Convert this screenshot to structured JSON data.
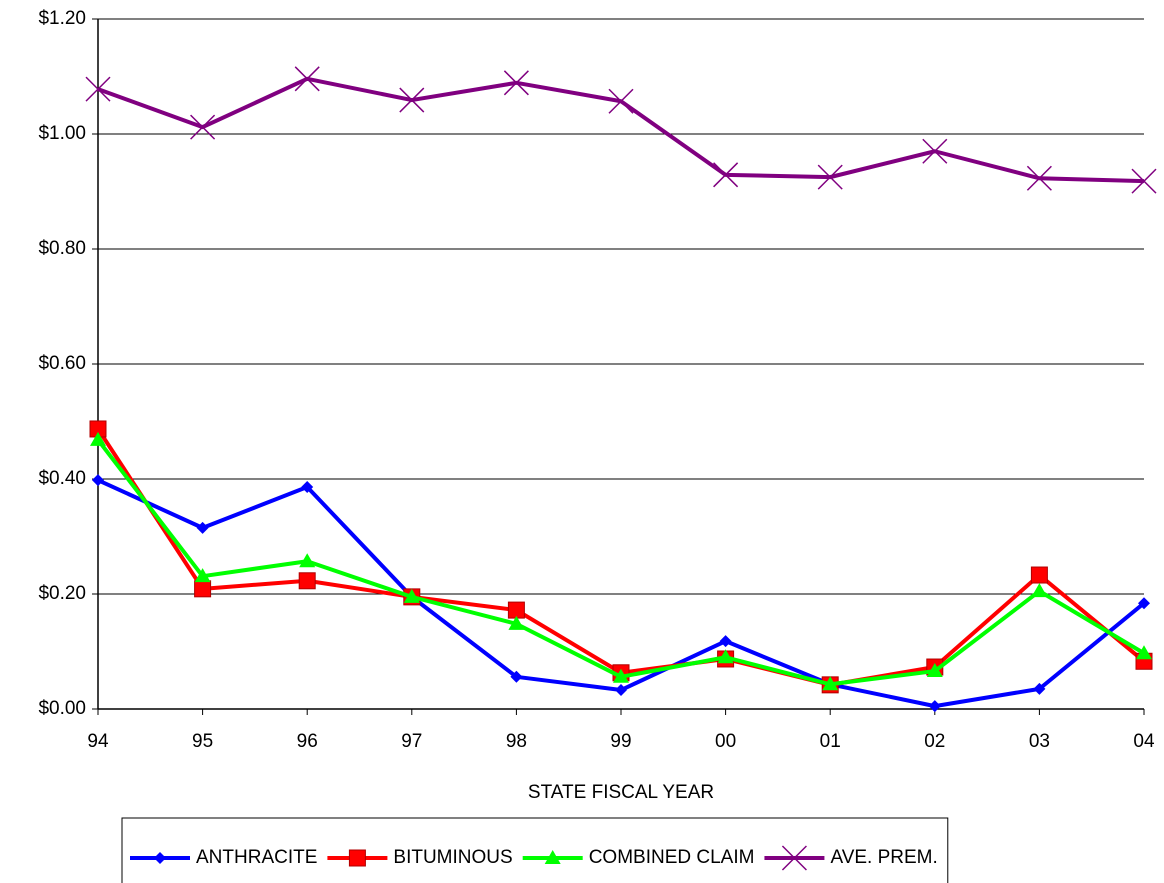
{
  "chart_data": {
    "type": "line",
    "x_label": "STATE FISCAL YEAR",
    "categories": [
      "94",
      "95",
      "96",
      "97",
      "98",
      "99",
      "00",
      "01",
      "02",
      "03",
      "04"
    ],
    "series": [
      {
        "name": "ANTHRACITE",
        "color": "#0000ff",
        "marker": "diamond",
        "values": [
          0.398,
          0.315,
          0.386,
          0.195,
          0.056,
          0.033,
          0.118,
          0.043,
          0.005,
          0.035,
          0.184
        ]
      },
      {
        "name": "BITUMINOUS",
        "color": "#ff0000",
        "marker": "square",
        "values": [
          0.487,
          0.209,
          0.223,
          0.195,
          0.172,
          0.063,
          0.087,
          0.042,
          0.073,
          0.233,
          0.083
        ]
      },
      {
        "name": "COMBINED CLAIM",
        "color": "#00ff00",
        "marker": "triangle",
        "values": [
          0.468,
          0.231,
          0.257,
          0.195,
          0.148,
          0.056,
          0.09,
          0.043,
          0.066,
          0.205,
          0.097
        ]
      },
      {
        "name": "AVE. PREM.",
        "color": "#800080",
        "marker": "x",
        "values": [
          1.078,
          1.012,
          1.096,
          1.059,
          1.089,
          1.057,
          0.929,
          0.925,
          0.97,
          0.923,
          0.918
        ]
      }
    ],
    "ylim": [
      0,
      1.2
    ],
    "yticks": [
      {
        "value": 0,
        "label": "$0.00"
      },
      {
        "value": 0.2,
        "label": "$0.20"
      },
      {
        "value": 0.4,
        "label": "$0.40"
      },
      {
        "value": 0.6,
        "label": "$0.60"
      },
      {
        "value": 0.8,
        "label": "$0.80"
      },
      {
        "value": 1,
        "label": "$1.00"
      },
      {
        "value": 1.2,
        "label": "$1.20"
      }
    ],
    "grid": true,
    "legend": "bottom"
  }
}
